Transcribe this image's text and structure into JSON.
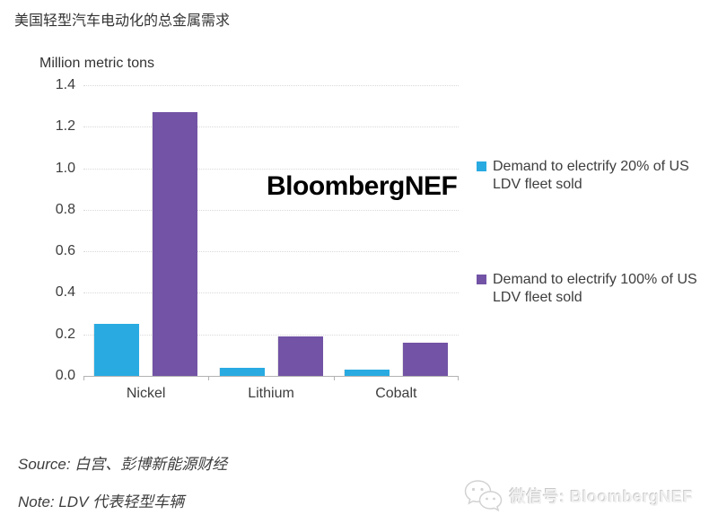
{
  "header": {
    "title": "美国轻型汽车电动化的总金属需求"
  },
  "watermark": {
    "text": "BloombergNEF"
  },
  "footer": {
    "source": "Source: 白宫、彭博新能源财经",
    "note": "Note: LDV 代表轻型车辆",
    "wechat": "微信号: BloombergNEF",
    "wechat_icon": "wechat-chat-bubbles-icon"
  },
  "colors": {
    "series_20pct": "#29ABE2",
    "series_100pct": "#7253A5",
    "text": "#3D3D3D",
    "gridline": "#D9D9D9",
    "axis": "#B3B3B3",
    "watermark_text": "#000000",
    "wechat_gray": "#DCDCDC"
  },
  "chart_data": {
    "type": "bar",
    "title": "美国轻型汽车电动化的总金属需求",
    "ylabel": "Million metric tons",
    "xlabel": "",
    "categories": [
      "Nickel",
      "Lithium",
      "Cobalt"
    ],
    "series": [
      {
        "name": "Demand to electrify 20% of US LDV fleet sold",
        "color": "#29ABE2",
        "values": [
          0.25,
          0.04,
          0.03
        ]
      },
      {
        "name": "Demand to electrify 100% of US LDV fleet sold",
        "color": "#7253A5",
        "values": [
          1.27,
          0.19,
          0.16
        ]
      }
    ],
    "ylim": [
      0,
      1.4
    ],
    "yticks": [
      0.0,
      0.2,
      0.4,
      0.6,
      0.8,
      1.0,
      1.2,
      1.4
    ],
    "ytick_format": "one_decimal",
    "grid": true,
    "legend_position": "right"
  }
}
